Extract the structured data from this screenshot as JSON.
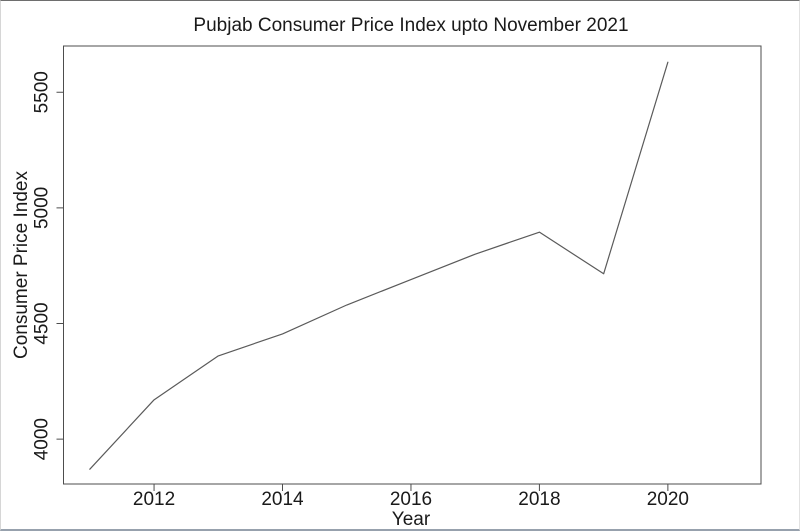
{
  "window": {
    "background": "#ffffff"
  },
  "chart_data": {
    "type": "line",
    "title": "Pubjab Consumer Price Index upto November 2021",
    "xlabel": "Year",
    "ylabel": "Consumer Price Index",
    "x": [
      2011,
      2012,
      2013,
      2014,
      2015,
      2016,
      2017,
      2018,
      2019,
      2020
    ],
    "series": [
      {
        "name": "Consumer Price Index",
        "values": [
          3870,
          4170,
          4360,
          4455,
          4580,
          4690,
          4800,
          4895,
          4715,
          5630
        ]
      }
    ],
    "xticks": [
      2012,
      2014,
      2016,
      2018,
      2020
    ],
    "yticks": [
      4000,
      4500,
      5000,
      5500
    ],
    "xtick_labels": [
      "2012",
      "2014",
      "2016",
      "2018",
      "2020"
    ],
    "ytick_labels": [
      "4000",
      "4500",
      "5000",
      "5500"
    ],
    "xlim": [
      2010.59,
      2021.45
    ],
    "ylim": [
      3806,
      5700
    ],
    "grid": false,
    "legend_position": "none",
    "line_color": "#5a5a5a",
    "axis_color": "#4d4d4d",
    "text_color": "#1a1a1a",
    "plot_background": "#ffffff",
    "ytick_labels_rotated": true
  }
}
